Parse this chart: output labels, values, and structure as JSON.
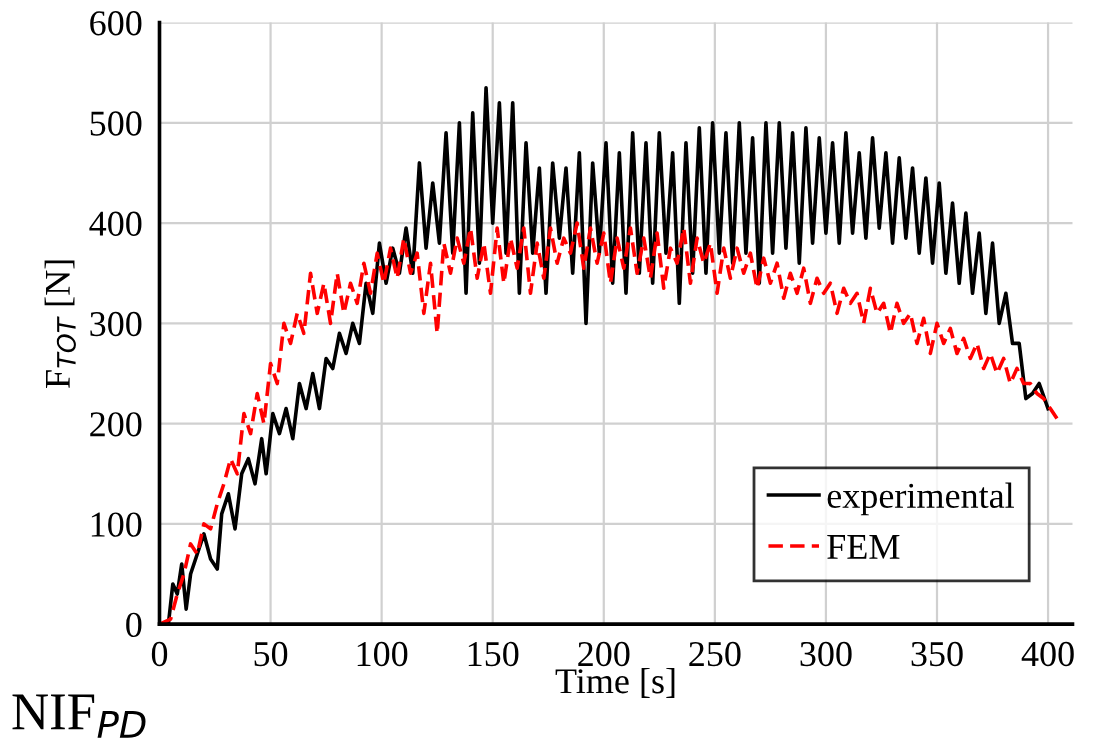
{
  "chart_data": {
    "type": "line",
    "xlabel": "Time [s]",
    "ylabel": "F$_{TOT}$ [N]",
    "annotations": [
      "NIF$_{PD}$"
    ],
    "xlim": [
      0,
      411
    ],
    "ylim": [
      0,
      600
    ],
    "xticks": [
      0,
      50,
      100,
      150,
      200,
      250,
      300,
      350,
      400
    ],
    "yticks": [
      0,
      100,
      200,
      300,
      400,
      500,
      600
    ],
    "grid": true,
    "legend": "bottom right",
    "marker": "none",
    "series": [
      {
        "name": "experimental",
        "color": "#000000",
        "line_style": "solid",
        "x": [
          0,
          4,
          6,
          8,
          10,
          12,
          14,
          17,
          20,
          23,
          26,
          28,
          31,
          34,
          37,
          40,
          43,
          46,
          48,
          51,
          54,
          57,
          60,
          63,
          66,
          69,
          72,
          75,
          78,
          81,
          84,
          87,
          90,
          93,
          96,
          99,
          102,
          105,
          108,
          111,
          114,
          117,
          120,
          123,
          126,
          129,
          132,
          135,
          138,
          141,
          144,
          147,
          150,
          153,
          156,
          159,
          162,
          165,
          168,
          171,
          174,
          177,
          180,
          183,
          186,
          189,
          192,
          195,
          198,
          201,
          204,
          207,
          210,
          213,
          216,
          219,
          222,
          225,
          228,
          231,
          234,
          237,
          240,
          243,
          246,
          249,
          252,
          255,
          258,
          261,
          264,
          267,
          270,
          273,
          276,
          279,
          282,
          285,
          288,
          291,
          294,
          297,
          300,
          303,
          306,
          309,
          312,
          315,
          318,
          321,
          324,
          327,
          330,
          333,
          336,
          339,
          342,
          345,
          348,
          351,
          354,
          357,
          360,
          363,
          366,
          369,
          372,
          375,
          378,
          381,
          384,
          387,
          390,
          393,
          396,
          400
        ],
        "values": [
          0,
          0,
          40,
          30,
          60,
          15,
          50,
          70,
          90,
          65,
          55,
          110,
          130,
          95,
          150,
          165,
          140,
          185,
          150,
          210,
          190,
          215,
          185,
          240,
          215,
          250,
          215,
          265,
          255,
          290,
          270,
          300,
          280,
          340,
          310,
          380,
          340,
          375,
          350,
          395,
          350,
          460,
          375,
          440,
          380,
          490,
          370,
          500,
          330,
          510,
          360,
          535,
          400,
          520,
          370,
          520,
          330,
          480,
          370,
          455,
          330,
          460,
          385,
          455,
          350,
          470,
          300,
          460,
          370,
          480,
          340,
          470,
          330,
          490,
          350,
          480,
          340,
          490,
          370,
          470,
          320,
          480,
          350,
          495,
          350,
          500,
          370,
          490,
          360,
          500,
          370,
          485,
          340,
          500,
          370,
          500,
          375,
          490,
          360,
          495,
          380,
          485,
          390,
          480,
          380,
          490,
          390,
          470,
          385,
          485,
          395,
          470,
          380,
          465,
          385,
          455,
          370,
          445,
          360,
          440,
          350,
          420,
          340,
          410,
          330,
          390,
          310,
          380,
          300,
          330,
          280,
          280,
          225,
          230,
          240,
          215
        ]
      },
      {
        "name": "FEM",
        "color": "#ff0000",
        "line_style": "dashed",
        "x": [
          0,
          5,
          8,
          11,
          14,
          17,
          20,
          23,
          26,
          29,
          32,
          35,
          38,
          41,
          44,
          47,
          50,
          53,
          56,
          59,
          62,
          65,
          68,
          71,
          74,
          77,
          80,
          83,
          86,
          89,
          92,
          95,
          98,
          101,
          104,
          107,
          110,
          113,
          116,
          119,
          122,
          125,
          128,
          131,
          134,
          137,
          140,
          143,
          146,
          149,
          152,
          155,
          158,
          161,
          164,
          167,
          170,
          173,
          176,
          179,
          182,
          185,
          188,
          191,
          194,
          197,
          200,
          203,
          206,
          209,
          212,
          215,
          218,
          221,
          224,
          227,
          230,
          233,
          236,
          239,
          242,
          245,
          248,
          251,
          254,
          257,
          260,
          263,
          266,
          269,
          272,
          275,
          278,
          281,
          284,
          287,
          290,
          293,
          296,
          299,
          302,
          305,
          308,
          311,
          314,
          317,
          320,
          323,
          326,
          329,
          332,
          335,
          338,
          341,
          344,
          347,
          350,
          353,
          356,
          359,
          362,
          365,
          368,
          371,
          374,
          377,
          380,
          383,
          386,
          389,
          392,
          395,
          398,
          401,
          404
        ],
        "values": [
          0,
          5,
          30,
          50,
          80,
          70,
          100,
          95,
          120,
          140,
          165,
          150,
          210,
          190,
          230,
          200,
          260,
          240,
          300,
          280,
          310,
          290,
          350,
          310,
          340,
          300,
          350,
          310,
          340,
          320,
          360,
          330,
          370,
          340,
          375,
          345,
          385,
          350,
          370,
          310,
          360,
          290,
          380,
          350,
          385,
          360,
          395,
          345,
          380,
          330,
          395,
          340,
          385,
          355,
          395,
          330,
          380,
          345,
          395,
          360,
          385,
          370,
          400,
          355,
          395,
          360,
          390,
          340,
          385,
          355,
          395,
          350,
          385,
          345,
          390,
          335,
          375,
          360,
          395,
          340,
          385,
          360,
          380,
          330,
          375,
          345,
          375,
          350,
          370,
          335,
          365,
          340,
          360,
          325,
          350,
          330,
          355,
          320,
          345,
          330,
          340,
          310,
          335,
          320,
          330,
          300,
          335,
          310,
          320,
          290,
          320,
          300,
          310,
          280,
          305,
          270,
          300,
          280,
          295,
          270,
          285,
          265,
          280,
          255,
          270,
          250,
          265,
          240,
          255,
          240,
          240,
          230,
          225,
          215,
          205
        ]
      }
    ]
  }
}
